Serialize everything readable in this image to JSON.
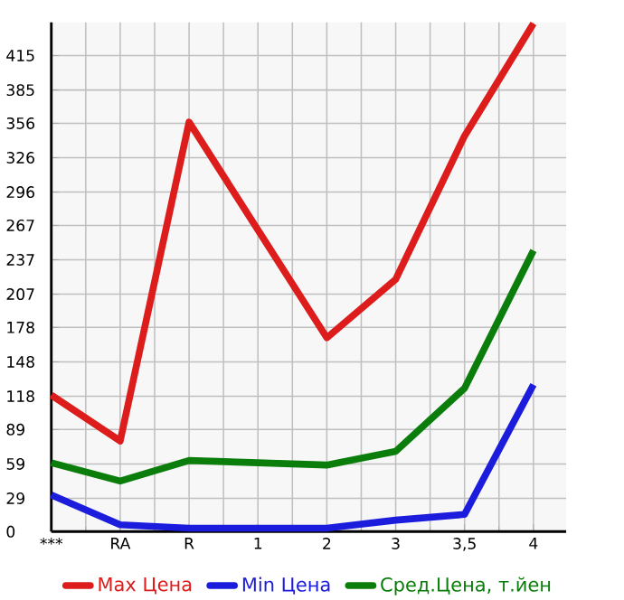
{
  "chart_data": {
    "type": "line",
    "categories": [
      "***",
      "RA",
      "R",
      "1",
      "2",
      "3",
      "3,5",
      "4"
    ],
    "series": [
      {
        "name": "Max Цена",
        "color": "#dd1c1c",
        "values": [
          119,
          79,
          357,
          263,
          169,
          220,
          345,
          443
        ]
      },
      {
        "name": "Min Цена",
        "color": "#1c1cdd",
        "values": [
          32,
          6,
          3,
          3,
          3,
          10,
          15,
          128
        ]
      },
      {
        "name": "Сред.Цена, т.йен",
        "color": "#0a7d0a",
        "values": [
          60,
          44,
          62,
          60,
          58,
          70,
          125,
          245
        ]
      }
    ],
    "ylim": [
      0,
      444
    ],
    "yticks": [
      0,
      29,
      59,
      89,
      118,
      148,
      178,
      207,
      237,
      267,
      296,
      326,
      356,
      385,
      415
    ],
    "grid": true,
    "legend": "bottom",
    "marker": "none",
    "line_style": "solid"
  }
}
